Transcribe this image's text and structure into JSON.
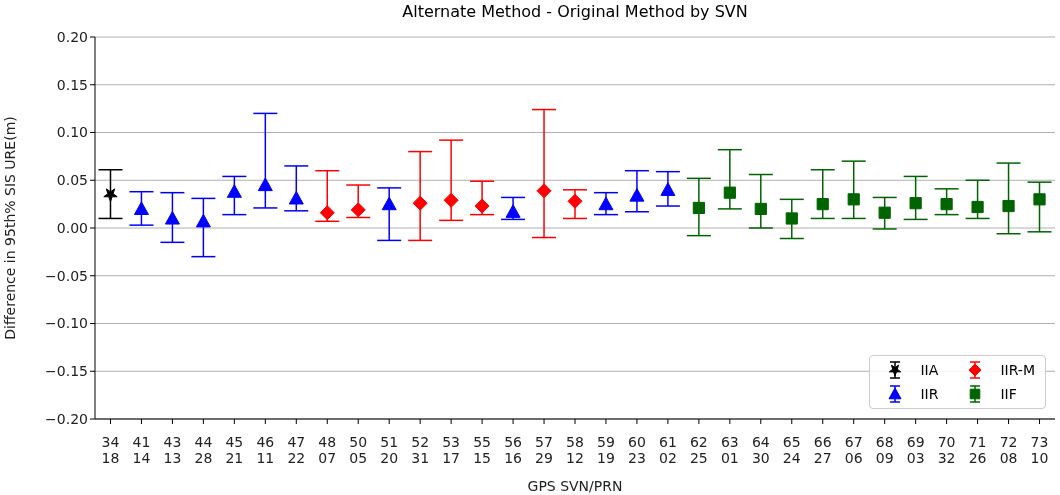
{
  "chart_data": {
    "type": "scatter",
    "title": "Alternate Method - Original Method by SVN",
    "xlabel": "GPS SVN/PRN",
    "ylabel": "Difference in 95th% SIS URE(m)",
    "categories": [
      "34\n18",
      "41\n14",
      "43\n13",
      "44\n28",
      "45\n21",
      "46\n11",
      "47\n22",
      "48\n07",
      "50\n05",
      "51\n20",
      "52\n31",
      "53\n17",
      "55\n15",
      "56\n16",
      "57\n29",
      "58\n12",
      "59\n19",
      "60\n23",
      "61\n02",
      "62\n25",
      "63\n01",
      "64\n30",
      "65\n24",
      "66\n27",
      "67\n06",
      "68\n09",
      "69\n03",
      "70\n32",
      "71\n26",
      "72\n08",
      "73\n10"
    ],
    "ylim": [
      -0.2,
      0.2
    ],
    "yticks": [
      {
        "value": -0.2,
        "label": "−0.20"
      },
      {
        "value": -0.15,
        "label": "−0.15"
      },
      {
        "value": -0.1,
        "label": "−0.10"
      },
      {
        "value": -0.05,
        "label": "−0.05"
      },
      {
        "value": 0,
        "label": "0.00"
      },
      {
        "value": 0.05,
        "label": "0.05"
      },
      {
        "value": 0.1,
        "label": "0.10"
      },
      {
        "value": 0.15,
        "label": "0.15"
      },
      {
        "value": 0.2,
        "label": "0.20"
      }
    ],
    "grid": "y",
    "legend": "bottom right",
    "series": [
      {
        "name": "IIA",
        "color": "#000000",
        "marker": "star",
        "values": [
          0.035,
          null,
          null,
          null,
          null,
          null,
          null,
          null,
          null,
          null,
          null,
          null,
          null,
          null,
          null,
          null,
          null,
          null,
          null,
          null,
          null,
          null,
          null,
          null,
          null,
          null,
          null,
          null,
          null,
          null,
          null
        ],
        "errors": [
          [
            0.01,
            0.061
          ],
          null,
          null,
          null,
          null,
          null,
          null,
          null,
          null,
          null,
          null,
          null,
          null,
          null,
          null,
          null,
          null,
          null,
          null,
          null,
          null,
          null,
          null,
          null,
          null,
          null,
          null,
          null,
          null,
          null,
          null
        ]
      },
      {
        "name": "IIR",
        "color": "#0000ff",
        "marker": "triangle",
        "values": [
          null,
          0.02,
          0.01,
          0.007,
          0.038,
          0.045,
          0.031,
          null,
          null,
          0.025,
          null,
          null,
          null,
          0.017,
          null,
          null,
          0.025,
          0.034,
          0.04,
          null,
          null,
          null,
          null,
          null,
          null,
          null,
          null,
          null,
          null,
          null,
          null
        ],
        "errors": [
          null,
          [
            0.003,
            0.038
          ],
          [
            -0.015,
            0.037
          ],
          [
            -0.03,
            0.031
          ],
          [
            0.014,
            0.054
          ],
          [
            0.021,
            0.12
          ],
          [
            0.018,
            0.065
          ],
          null,
          null,
          [
            -0.013,
            0.042
          ],
          null,
          null,
          null,
          [
            0.009,
            0.032
          ],
          null,
          null,
          [
            0.014,
            0.037
          ],
          [
            0.017,
            0.06
          ],
          [
            0.023,
            0.059
          ],
          null,
          null,
          null,
          null,
          null,
          null,
          null,
          null,
          null,
          null,
          null,
          null
        ]
      },
      {
        "name": "IIR-M",
        "color": "#ff0000",
        "marker": "diamond",
        "values": [
          null,
          null,
          null,
          null,
          null,
          null,
          null,
          0.016,
          0.019,
          null,
          0.026,
          0.029,
          0.023,
          null,
          0.039,
          0.028,
          null,
          null,
          null,
          null,
          null,
          null,
          null,
          null,
          null,
          null,
          null,
          null,
          null,
          null,
          null
        ],
        "errors": [
          null,
          null,
          null,
          null,
          null,
          null,
          null,
          [
            0.007,
            0.06
          ],
          [
            0.011,
            0.045
          ],
          null,
          [
            -0.013,
            0.08
          ],
          [
            0.008,
            0.092
          ],
          [
            0.014,
            0.049
          ],
          null,
          [
            -0.01,
            0.124
          ],
          [
            0.01,
            0.04
          ],
          null,
          null,
          null,
          null,
          null,
          null,
          null,
          null,
          null,
          null,
          null,
          null,
          null,
          null,
          null
        ]
      },
      {
        "name": "IIF",
        "color": "#006400",
        "marker": "square",
        "values": [
          null,
          null,
          null,
          null,
          null,
          null,
          null,
          null,
          null,
          null,
          null,
          null,
          null,
          null,
          null,
          null,
          null,
          null,
          null,
          0.021,
          0.037,
          0.02,
          0.01,
          0.025,
          0.03,
          0.016,
          0.026,
          0.025,
          0.022,
          0.023,
          0.03
        ],
        "errors": [
          null,
          null,
          null,
          null,
          null,
          null,
          null,
          null,
          null,
          null,
          null,
          null,
          null,
          null,
          null,
          null,
          null,
          null,
          null,
          [
            -0.008,
            0.052
          ],
          [
            0.02,
            0.082
          ],
          [
            0.0,
            0.056
          ],
          [
            -0.011,
            0.03
          ],
          [
            0.01,
            0.061
          ],
          [
            0.01,
            0.07
          ],
          [
            -0.001,
            0.032
          ],
          [
            0.009,
            0.054
          ],
          [
            0.014,
            0.041
          ],
          [
            0.01,
            0.05
          ],
          [
            -0.006,
            0.068
          ],
          [
            -0.004,
            0.048
          ]
        ]
      }
    ]
  }
}
